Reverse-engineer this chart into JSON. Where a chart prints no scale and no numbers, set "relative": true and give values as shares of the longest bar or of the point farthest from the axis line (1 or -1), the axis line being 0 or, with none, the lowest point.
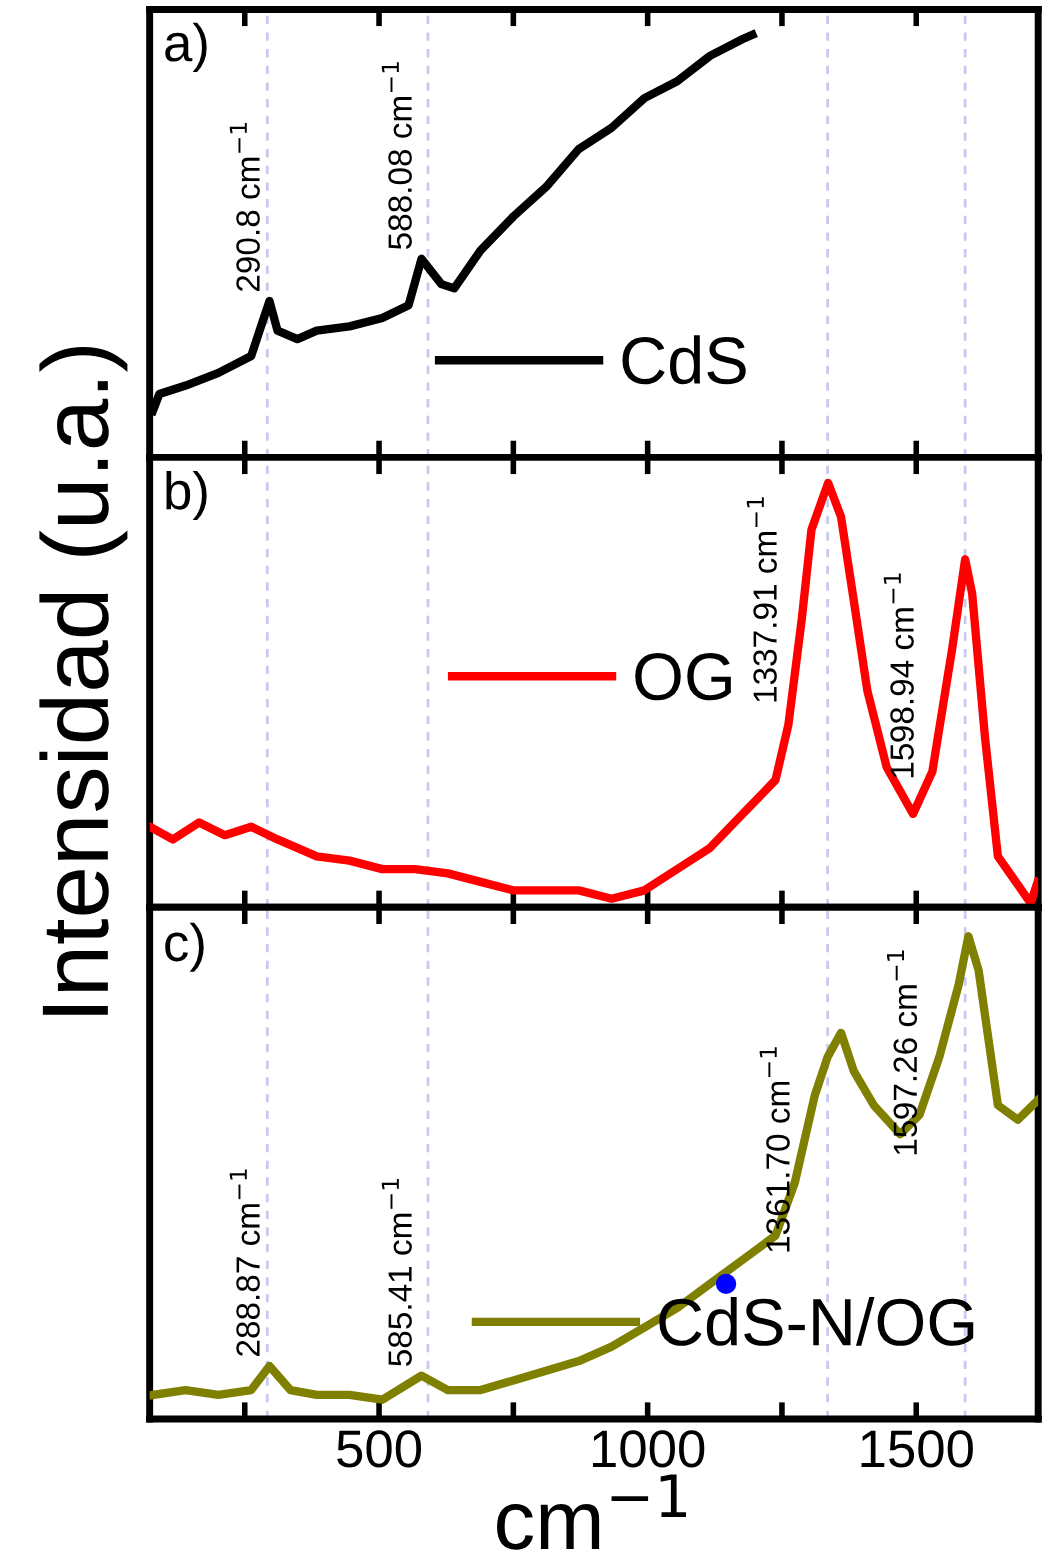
{
  "chart_data": [
    {
      "type": "line",
      "relative": true,
      "xlim": [
        73,
        1727
      ],
      "xticks": [
        {
          "value": 250,
          "label": null
        },
        {
          "value": 500,
          "label": null
        },
        {
          "value": 750,
          "label": null
        },
        {
          "value": 1000,
          "label": null
        },
        {
          "value": 1250,
          "label": null
        },
        {
          "value": 1500,
          "label": null
        }
      ],
      "tick_labels": false,
      "legend": "bottom",
      "ref_lines": [
        {
          "axis": "x",
          "value": 292,
          "color": "#c8c8f0",
          "line_style": "dashed"
        },
        {
          "axis": "x",
          "value": 591,
          "color": "#c8c8f0",
          "line_style": "dashed"
        },
        {
          "axis": "x",
          "value": 1335,
          "color": "#c8c8f0",
          "line_style": "dashed"
        },
        {
          "axis": "x",
          "value": 1591,
          "color": "#c8c8f0",
          "line_style": "dashed"
        }
      ],
      "annotations": [
        "a)",
        {
          "text": "290.8 cm$^{−1}$",
          "x": 296,
          "y": 0.37
        },
        {
          "text": "588.08 cm$^{−1}$",
          "x": 579,
          "y": 0.47
        }
      ],
      "series": [
        {
          "name": "CdS",
          "color": "#000000",
          "x": [
            79,
            91,
            140,
            201,
            262,
            296,
            311,
            348,
            384,
            445,
            506,
            555,
            579,
            616,
            640,
            689,
            750,
            811,
            872,
            933,
            994,
            1055,
            1116,
            1177,
            1195
          ],
          "values": [
            0.11,
            0.15,
            0.17,
            0.2,
            0.24,
            0.37,
            0.3,
            0.28,
            0.3,
            0.31,
            0.33,
            0.36,
            0.47,
            0.41,
            0.4,
            0.49,
            0.57,
            0.64,
            0.73,
            0.78,
            0.85,
            0.89,
            0.95,
            0.99,
            1.0
          ]
        }
      ]
    },
    {
      "type": "line",
      "relative": true,
      "xlim": [
        73,
        1727
      ],
      "xticks": [
        {
          "value": 250,
          "label": null
        },
        {
          "value": 500,
          "label": null
        },
        {
          "value": 750,
          "label": null
        },
        {
          "value": 1000,
          "label": null
        },
        {
          "value": 1250,
          "label": null
        },
        {
          "value": 1500,
          "label": null
        }
      ],
      "tick_labels": false,
      "legend": "center",
      "ylabel": "Intensidad (u.a.)",
      "ref_lines": [
        {
          "axis": "x",
          "value": 292,
          "color": "#c8c8f0",
          "line_style": "dashed"
        },
        {
          "axis": "x",
          "value": 591,
          "color": "#c8c8f0",
          "line_style": "dashed"
        },
        {
          "axis": "x",
          "value": 1335,
          "color": "#c8c8f0",
          "line_style": "dashed"
        },
        {
          "axis": "x",
          "value": 1591,
          "color": "#c8c8f0",
          "line_style": "dashed"
        }
      ],
      "annotations": [
        "b)",
        {
          "text": "1337.91 cm$^{−1}$",
          "x": 1336,
          "y": 1.0
        },
        {
          "text": "1598.94 cm$^{−1}$",
          "x": 1591,
          "y": 0.82
        }
      ],
      "series": [
        {
          "name": "OG",
          "color": "#ff0000",
          "x": [
            73,
            116,
            165,
            213,
            262,
            311,
            384,
            445,
            506,
            567,
            628,
            689,
            750,
            811,
            872,
            933,
            994,
            1055,
            1116,
            1177,
            1238,
            1262,
            1287,
            1305,
            1336,
            1360,
            1384,
            1409,
            1445,
            1494,
            1530,
            1567,
            1591,
            1604,
            1628,
            1652,
            1713,
            1726
          ],
          "values": [
            0.19,
            0.16,
            0.2,
            0.17,
            0.19,
            0.16,
            0.12,
            0.11,
            0.09,
            0.09,
            0.08,
            0.06,
            0.04,
            0.04,
            0.04,
            0.02,
            0.04,
            0.09,
            0.14,
            0.22,
            0.3,
            0.43,
            0.68,
            0.89,
            1.0,
            0.92,
            0.72,
            0.51,
            0.33,
            0.22,
            0.32,
            0.61,
            0.82,
            0.74,
            0.4,
            0.12,
            0.01,
            0.06
          ]
        }
      ]
    },
    {
      "type": "line",
      "relative": true,
      "xlim": [
        73,
        1727
      ],
      "xticks": [
        {
          "value": 250,
          "label": null
        },
        500,
        {
          "value": 750,
          "label": null
        },
        1000,
        {
          "value": 1250,
          "label": null
        },
        1500
      ],
      "tick_labels": "x",
      "legend": "bottom right",
      "xlabel": "cm$^{−1}$",
      "ref_lines": [
        {
          "axis": "x",
          "value": 292,
          "color": "#c8c8f0",
          "line_style": "dashed"
        },
        {
          "axis": "x",
          "value": 591,
          "color": "#c8c8f0",
          "line_style": "dashed"
        },
        {
          "axis": "x",
          "value": 1335,
          "color": "#c8c8f0",
          "line_style": "dashed"
        },
        {
          "axis": "x",
          "value": 1591,
          "color": "#c8c8f0",
          "line_style": "dashed"
        }
      ],
      "annotations": [
        "c)",
        {
          "text": "288.87 cm$^{−1}$",
          "x": 296,
          "y": 0.11
        },
        {
          "text": "585.41 cm$^{−1}$",
          "x": 579,
          "y": 0.09
        },
        {
          "text": "1361.70 cm$^{−1}$",
          "x": 1360,
          "y": 0.8
        },
        {
          "text": "1597.26 cm$^{−1}$",
          "x": 1597,
          "y": 1.0
        }
      ],
      "series": [
        {
          "name": "CdS-N/OG",
          "color": "#808000",
          "x": [
            79,
            140,
            201,
            262,
            296,
            335,
            384,
            445,
            506,
            579,
            628,
            689,
            750,
            811,
            872,
            933,
            994,
            1055,
            1116,
            1177,
            1238,
            1274,
            1311,
            1335,
            1360,
            1384,
            1421,
            1470,
            1506,
            1543,
            1579,
            1597,
            1616,
            1652,
            1689,
            1726
          ],
          "values": [
            0.05,
            0.06,
            0.05,
            0.06,
            0.11,
            0.06,
            0.05,
            0.05,
            0.04,
            0.09,
            0.06,
            0.06,
            0.08,
            0.1,
            0.12,
            0.15,
            0.19,
            0.23,
            0.28,
            0.33,
            0.38,
            0.49,
            0.67,
            0.75,
            0.8,
            0.72,
            0.65,
            0.59,
            0.63,
            0.75,
            0.9,
            1.0,
            0.93,
            0.65,
            0.62,
            0.66
          ]
        },
        {
          "type": "scatter",
          "color": "#0000ff",
          "marker": "circle",
          "x": [
            1146
          ],
          "values": [
            0.28
          ]
        }
      ]
    }
  ]
}
